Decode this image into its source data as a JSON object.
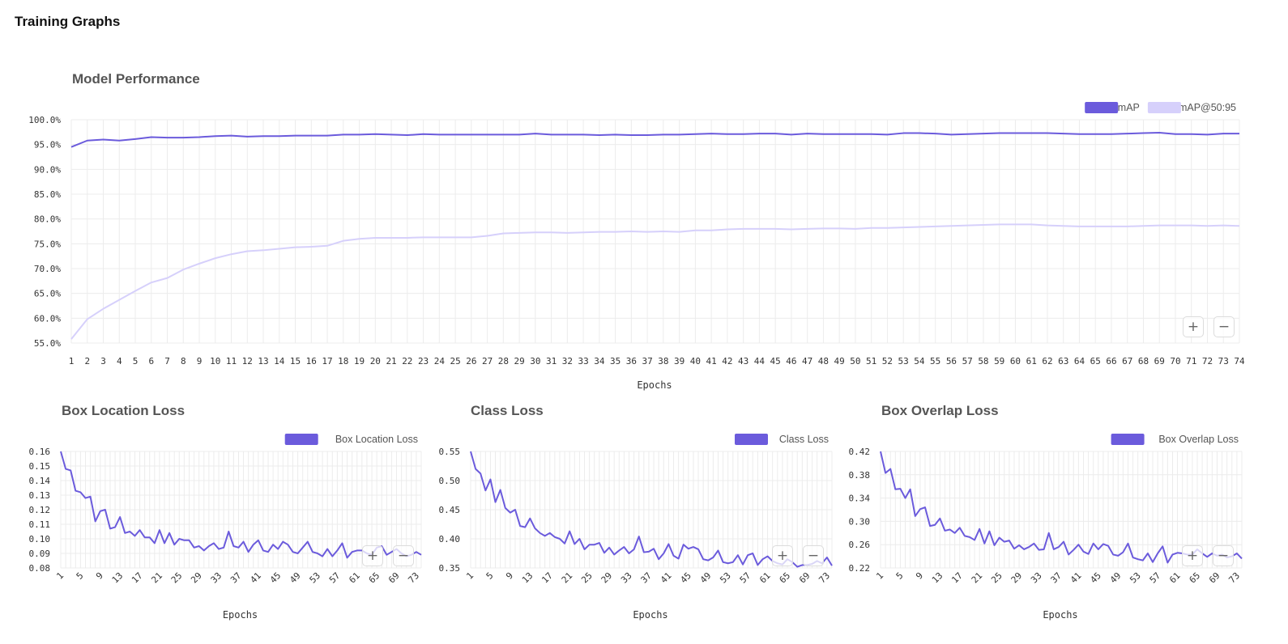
{
  "page": {
    "title": "Training Graphs"
  },
  "colors": {
    "primary": "#6b5bdc",
    "secondary": "#d6d0fb",
    "grid": "#ececec"
  },
  "zoom": {
    "in_label": "+",
    "out_label": "−"
  },
  "chart_data": [
    {
      "id": "performance",
      "type": "line",
      "title": "Model Performance",
      "xlabel": "Epochs",
      "ylabel": "",
      "ylim": [
        55,
        100
      ],
      "y_ticks": [
        "55.0%",
        "60.0%",
        "65.0%",
        "70.0%",
        "75.0%",
        "80.0%",
        "85.0%",
        "90.0%",
        "95.0%",
        "100.0%"
      ],
      "x_tick_every": 1,
      "x_tick_rotate": false,
      "legend_position": "top-right",
      "grid": true,
      "x": [
        1,
        2,
        3,
        4,
        5,
        6,
        7,
        8,
        9,
        10,
        11,
        12,
        13,
        14,
        15,
        16,
        17,
        18,
        19,
        20,
        21,
        22,
        23,
        24,
        25,
        26,
        27,
        28,
        29,
        30,
        31,
        32,
        33,
        34,
        35,
        36,
        37,
        38,
        39,
        40,
        41,
        42,
        43,
        44,
        45,
        46,
        47,
        48,
        49,
        50,
        51,
        52,
        53,
        54,
        55,
        56,
        57,
        58,
        59,
        60,
        61,
        62,
        63,
        64,
        65,
        66,
        67,
        68,
        69,
        70,
        71,
        72,
        73,
        74
      ],
      "series": [
        {
          "name": "mAP",
          "color": "#6b5bdc",
          "values": [
            94.5,
            95.8,
            96.0,
            95.8,
            96.1,
            96.5,
            96.4,
            96.4,
            96.5,
            96.7,
            96.8,
            96.6,
            96.7,
            96.7,
            96.8,
            96.8,
            96.8,
            97.0,
            97.0,
            97.1,
            97.0,
            96.9,
            97.1,
            97.0,
            97.0,
            97.0,
            97.0,
            97.0,
            97.0,
            97.2,
            97.0,
            97.0,
            97.0,
            96.9,
            97.0,
            96.9,
            96.9,
            97.0,
            97.0,
            97.1,
            97.2,
            97.1,
            97.1,
            97.2,
            97.2,
            97.0,
            97.2,
            97.1,
            97.1,
            97.1,
            97.1,
            97.0,
            97.3,
            97.3,
            97.2,
            97.0,
            97.1,
            97.2,
            97.3,
            97.3,
            97.3,
            97.3,
            97.2,
            97.1,
            97.1,
            97.1,
            97.2,
            97.3,
            97.4,
            97.1,
            97.1,
            97.0,
            97.2,
            97.2
          ]
        },
        {
          "name": "mAP@50:95",
          "color": "#d6d0fb",
          "values": [
            55.8,
            59.8,
            61.9,
            63.7,
            65.5,
            67.2,
            68.1,
            69.8,
            71.0,
            72.1,
            72.9,
            73.5,
            73.7,
            74.0,
            74.3,
            74.4,
            74.6,
            75.6,
            76.0,
            76.2,
            76.2,
            76.2,
            76.3,
            76.3,
            76.3,
            76.3,
            76.6,
            77.1,
            77.2,
            77.3,
            77.3,
            77.2,
            77.3,
            77.4,
            77.4,
            77.5,
            77.4,
            77.5,
            77.4,
            77.7,
            77.7,
            77.9,
            78.0,
            78.0,
            78.0,
            77.9,
            78.0,
            78.1,
            78.1,
            78.0,
            78.2,
            78.2,
            78.3,
            78.4,
            78.5,
            78.6,
            78.7,
            78.8,
            78.9,
            78.9,
            78.9,
            78.7,
            78.6,
            78.5,
            78.5,
            78.5,
            78.5,
            78.6,
            78.7,
            78.7,
            78.7,
            78.6,
            78.7,
            78.6
          ]
        }
      ]
    },
    {
      "id": "box-location-loss",
      "type": "line",
      "title": "Box Location Loss",
      "xlabel": "Epochs",
      "ylabel": "",
      "ylim": [
        0.08,
        0.16
      ],
      "y_ticks": [
        "0.08",
        "0.09",
        "0.10",
        "0.11",
        "0.12",
        "0.13",
        "0.14",
        "0.15",
        "0.16"
      ],
      "x_tick_every": 4,
      "x_tick_rotate": true,
      "legend_position": "top-right",
      "grid": true,
      "x": [
        1,
        2,
        3,
        4,
        5,
        6,
        7,
        8,
        9,
        10,
        11,
        12,
        13,
        14,
        15,
        16,
        17,
        18,
        19,
        20,
        21,
        22,
        23,
        24,
        25,
        26,
        27,
        28,
        29,
        30,
        31,
        32,
        33,
        34,
        35,
        36,
        37,
        38,
        39,
        40,
        41,
        42,
        43,
        44,
        45,
        46,
        47,
        48,
        49,
        50,
        51,
        52,
        53,
        54,
        55,
        56,
        57,
        58,
        59,
        60,
        61,
        62,
        63,
        64,
        65,
        66,
        67,
        68,
        69,
        70,
        71,
        72,
        73,
        74
      ],
      "series": [
        {
          "name": "Box Location Loss",
          "color": "#6b5bdc",
          "values": [
            0.16,
            0.148,
            0.147,
            0.133,
            0.132,
            0.128,
            0.129,
            0.112,
            0.119,
            0.12,
            0.107,
            0.108,
            0.115,
            0.104,
            0.105,
            0.102,
            0.106,
            0.101,
            0.101,
            0.097,
            0.106,
            0.097,
            0.104,
            0.096,
            0.1,
            0.099,
            0.099,
            0.094,
            0.095,
            0.092,
            0.095,
            0.097,
            0.093,
            0.094,
            0.105,
            0.095,
            0.094,
            0.098,
            0.091,
            0.096,
            0.099,
            0.092,
            0.091,
            0.096,
            0.093,
            0.098,
            0.096,
            0.091,
            0.09,
            0.094,
            0.098,
            0.091,
            0.09,
            0.088,
            0.093,
            0.088,
            0.092,
            0.097,
            0.087,
            0.091,
            0.092,
            0.092,
            0.09,
            0.089,
            0.094,
            0.095,
            0.089,
            0.091,
            0.093,
            0.09,
            0.088,
            0.089,
            0.091,
            0.089
          ]
        }
      ]
    },
    {
      "id": "class-loss",
      "type": "line",
      "title": "Class Loss",
      "xlabel": "Epochs",
      "ylabel": "",
      "ylim": [
        0.35,
        0.55
      ],
      "y_ticks": [
        "0.35",
        "0.40",
        "0.45",
        "0.50",
        "0.55"
      ],
      "x_tick_every": 4,
      "x_tick_rotate": true,
      "legend_position": "top-right",
      "grid": true,
      "x": [
        1,
        2,
        3,
        4,
        5,
        6,
        7,
        8,
        9,
        10,
        11,
        12,
        13,
        14,
        15,
        16,
        17,
        18,
        19,
        20,
        21,
        22,
        23,
        24,
        25,
        26,
        27,
        28,
        29,
        30,
        31,
        32,
        33,
        34,
        35,
        36,
        37,
        38,
        39,
        40,
        41,
        42,
        43,
        44,
        45,
        46,
        47,
        48,
        49,
        50,
        51,
        52,
        53,
        54,
        55,
        56,
        57,
        58,
        59,
        60,
        61,
        62,
        63,
        64,
        65,
        66,
        67,
        68,
        69,
        70,
        71,
        72,
        73,
        74
      ],
      "series": [
        {
          "name": "Class Loss",
          "color": "#6b5bdc",
          "values": [
            0.55,
            0.52,
            0.512,
            0.483,
            0.502,
            0.463,
            0.484,
            0.453,
            0.445,
            0.45,
            0.422,
            0.42,
            0.435,
            0.418,
            0.41,
            0.405,
            0.41,
            0.403,
            0.4,
            0.392,
            0.413,
            0.391,
            0.4,
            0.382,
            0.39,
            0.39,
            0.393,
            0.376,
            0.385,
            0.373,
            0.38,
            0.386,
            0.375,
            0.382,
            0.404,
            0.377,
            0.378,
            0.383,
            0.365,
            0.375,
            0.391,
            0.371,
            0.366,
            0.39,
            0.383,
            0.386,
            0.382,
            0.365,
            0.363,
            0.368,
            0.38,
            0.36,
            0.358,
            0.36,
            0.372,
            0.356,
            0.372,
            0.375,
            0.355,
            0.365,
            0.37,
            0.362,
            0.358,
            0.356,
            0.365,
            0.36,
            0.352,
            0.355,
            0.355,
            0.357,
            0.362,
            0.358,
            0.368,
            0.354
          ]
        }
      ]
    },
    {
      "id": "box-overlap-loss",
      "type": "line",
      "title": "Box Overlap Loss",
      "xlabel": "Epochs",
      "ylabel": "",
      "ylim": [
        0.22,
        0.42
      ],
      "y_ticks": [
        "0.22",
        "0.26",
        "0.30",
        "0.34",
        "0.38",
        "0.42"
      ],
      "x_tick_every": 4,
      "x_tick_rotate": true,
      "legend_position": "top-right",
      "grid": true,
      "x": [
        1,
        2,
        3,
        4,
        5,
        6,
        7,
        8,
        9,
        10,
        11,
        12,
        13,
        14,
        15,
        16,
        17,
        18,
        19,
        20,
        21,
        22,
        23,
        24,
        25,
        26,
        27,
        28,
        29,
        30,
        31,
        32,
        33,
        34,
        35,
        36,
        37,
        38,
        39,
        40,
        41,
        42,
        43,
        44,
        45,
        46,
        47,
        48,
        49,
        50,
        51,
        52,
        53,
        54,
        55,
        56,
        57,
        58,
        59,
        60,
        61,
        62,
        63,
        64,
        65,
        66,
        67,
        68,
        69,
        70,
        71,
        72,
        73,
        74
      ],
      "series": [
        {
          "name": "Box Overlap Loss",
          "color": "#6b5bdc",
          "values": [
            0.42,
            0.383,
            0.39,
            0.355,
            0.356,
            0.34,
            0.355,
            0.309,
            0.321,
            0.324,
            0.292,
            0.294,
            0.305,
            0.284,
            0.286,
            0.28,
            0.289,
            0.275,
            0.273,
            0.268,
            0.287,
            0.262,
            0.283,
            0.259,
            0.272,
            0.265,
            0.267,
            0.253,
            0.259,
            0.252,
            0.256,
            0.262,
            0.251,
            0.252,
            0.28,
            0.252,
            0.256,
            0.265,
            0.243,
            0.251,
            0.26,
            0.248,
            0.244,
            0.262,
            0.252,
            0.261,
            0.258,
            0.243,
            0.241,
            0.247,
            0.262,
            0.238,
            0.235,
            0.233,
            0.245,
            0.23,
            0.245,
            0.257,
            0.229,
            0.243,
            0.246,
            0.245,
            0.243,
            0.243,
            0.252,
            0.245,
            0.239,
            0.245,
            0.241,
            0.243,
            0.238,
            0.24,
            0.245,
            0.236
          ]
        }
      ]
    }
  ]
}
